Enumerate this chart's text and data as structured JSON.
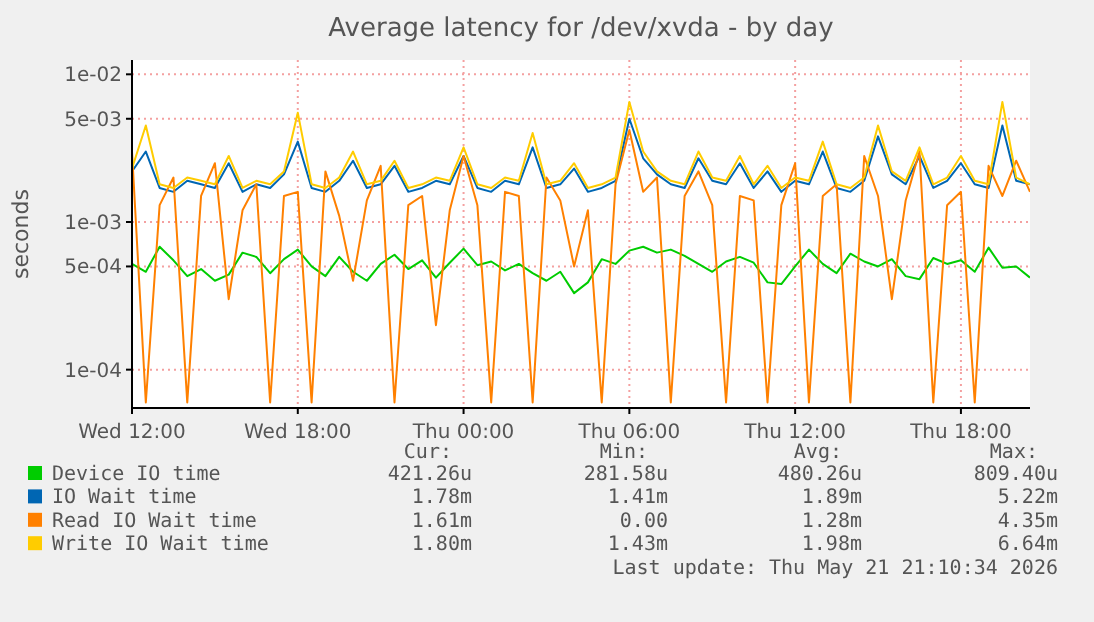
{
  "chart_data": {
    "type": "line",
    "title": "Average latency for /dev/xvda - by day",
    "ylabel": "seconds",
    "log": "y",
    "grid": true,
    "legend": "bottom",
    "marker": "none",
    "line_style": "solid",
    "x": [
      "2026-05-20T12:00",
      "2026-05-20T12:30",
      "2026-05-20T13:00",
      "2026-05-20T13:30",
      "2026-05-20T14:00",
      "2026-05-20T14:30",
      "2026-05-20T15:00",
      "2026-05-20T15:30",
      "2026-05-20T16:00",
      "2026-05-20T16:30",
      "2026-05-20T17:00",
      "2026-05-20T17:30",
      "2026-05-20T18:00",
      "2026-05-20T18:30",
      "2026-05-20T19:00",
      "2026-05-20T19:30",
      "2026-05-20T20:00",
      "2026-05-20T20:30",
      "2026-05-20T21:00",
      "2026-05-20T21:30",
      "2026-05-20T22:00",
      "2026-05-20T22:30",
      "2026-05-20T23:00",
      "2026-05-20T23:30",
      "2026-05-21T00:00",
      "2026-05-21T00:30",
      "2026-05-21T01:00",
      "2026-05-21T01:30",
      "2026-05-21T02:00",
      "2026-05-21T02:30",
      "2026-05-21T03:00",
      "2026-05-21T03:30",
      "2026-05-21T04:00",
      "2026-05-21T04:30",
      "2026-05-21T05:00",
      "2026-05-21T05:30",
      "2026-05-21T06:00",
      "2026-05-21T06:30",
      "2026-05-21T07:00",
      "2026-05-21T07:30",
      "2026-05-21T08:00",
      "2026-05-21T08:30",
      "2026-05-21T09:00",
      "2026-05-21T09:30",
      "2026-05-21T10:00",
      "2026-05-21T10:30",
      "2026-05-21T11:00",
      "2026-05-21T11:30",
      "2026-05-21T12:00",
      "2026-05-21T12:30",
      "2026-05-21T13:00",
      "2026-05-21T13:30",
      "2026-05-21T14:00",
      "2026-05-21T14:30",
      "2026-05-21T15:00",
      "2026-05-21T15:30",
      "2026-05-21T16:00",
      "2026-05-21T16:30",
      "2026-05-21T17:00",
      "2026-05-21T17:30",
      "2026-05-21T18:00",
      "2026-05-21T18:30",
      "2026-05-21T19:00",
      "2026-05-21T19:30",
      "2026-05-21T20:00",
      "2026-05-21T20:30"
    ],
    "xlim": [
      "2026-05-20T12:00",
      "2026-05-21T20:30"
    ],
    "xticks": [
      {
        "value": "2026-05-20T12:00",
        "label": "Wed 12:00"
      },
      {
        "value": "2026-05-20T18:00",
        "label": "Wed 18:00"
      },
      {
        "value": "2026-05-21T00:00",
        "label": "Thu 00:00"
      },
      {
        "value": "2026-05-21T06:00",
        "label": "Thu 06:00"
      },
      {
        "value": "2026-05-21T12:00",
        "label": "Thu 12:00"
      },
      {
        "value": "2026-05-21T18:00",
        "label": "Thu 18:00"
      }
    ],
    "ylim": [
      5.5e-05,
      0.0125
    ],
    "yticks": [
      {
        "value": 0.0001,
        "label": "1e-04"
      },
      {
        "value": 0.0005,
        "label": "5e-04"
      },
      {
        "value": 0.001,
        "label": "1e-03"
      },
      {
        "value": 0.005,
        "label": "5e-03"
      },
      {
        "value": 0.01,
        "label": "1e-02"
      }
    ],
    "series": [
      {
        "name": "Device IO time",
        "color": "#00cc00",
        "values": [
          0.00052,
          0.00046,
          0.00068,
          0.00055,
          0.00043,
          0.00048,
          0.0004,
          0.00044,
          0.00062,
          0.00058,
          0.00045,
          0.00056,
          0.00065,
          0.0005,
          0.00043,
          0.00058,
          0.00046,
          0.0004,
          0.00052,
          0.0006,
          0.00048,
          0.00055,
          0.00042,
          0.00053,
          0.00066,
          0.00051,
          0.00054,
          0.00047,
          0.00052,
          0.00045,
          0.0004,
          0.00046,
          0.00033,
          0.00039,
          0.00056,
          0.00052,
          0.00064,
          0.00068,
          0.00062,
          0.00065,
          0.00059,
          0.00052,
          0.00046,
          0.00054,
          0.00058,
          0.00053,
          0.00039,
          0.00038,
          0.0005,
          0.00065,
          0.00052,
          0.00045,
          0.00061,
          0.00054,
          0.0005,
          0.00056,
          0.00043,
          0.00041,
          0.00057,
          0.00052,
          0.00055,
          0.00046,
          0.00067,
          0.00049,
          0.0005,
          0.00042
        ]
      },
      {
        "name": "IO Wait time",
        "color": "#0066b3",
        "values": [
          0.0022,
          0.003,
          0.0017,
          0.0016,
          0.0019,
          0.0018,
          0.0017,
          0.0025,
          0.0016,
          0.0018,
          0.0017,
          0.0021,
          0.0035,
          0.0017,
          0.0016,
          0.0019,
          0.0026,
          0.0017,
          0.0018,
          0.0024,
          0.0016,
          0.0017,
          0.0019,
          0.0018,
          0.0028,
          0.0017,
          0.0016,
          0.0019,
          0.0018,
          0.0032,
          0.0017,
          0.0018,
          0.0023,
          0.0016,
          0.0017,
          0.0019,
          0.005,
          0.0027,
          0.0021,
          0.0018,
          0.0017,
          0.0027,
          0.0019,
          0.0018,
          0.0025,
          0.0017,
          0.0022,
          0.0016,
          0.0019,
          0.0018,
          0.003,
          0.0017,
          0.0016,
          0.0019,
          0.0038,
          0.0021,
          0.0018,
          0.0028,
          0.0017,
          0.0019,
          0.0025,
          0.0018,
          0.0017,
          0.0045,
          0.0019,
          0.0018
        ]
      },
      {
        "name": "Read IO Wait time",
        "color": "#ff8000",
        "values": [
          0.003,
          6e-05,
          0.0013,
          0.002,
          6e-05,
          0.0015,
          0.0025,
          0.0003,
          0.0012,
          0.0018,
          6e-05,
          0.0015,
          0.0016,
          6e-05,
          0.0022,
          0.0011,
          0.0004,
          0.0014,
          0.0024,
          6e-05,
          0.0013,
          0.0015,
          0.0002,
          0.0012,
          0.0028,
          0.0013,
          6e-05,
          0.0016,
          0.0015,
          6e-05,
          0.002,
          0.0014,
          0.0005,
          0.0012,
          6e-05,
          0.0018,
          0.0042,
          0.0016,
          0.002,
          6e-05,
          0.0015,
          0.0022,
          0.0013,
          6e-05,
          0.0015,
          0.0014,
          6e-05,
          0.0013,
          0.0025,
          6e-05,
          0.0015,
          0.0018,
          6e-05,
          0.0028,
          0.0015,
          0.0003,
          0.0014,
          0.003,
          6e-05,
          0.0013,
          0.0016,
          6e-05,
          0.0024,
          0.0015,
          0.0026,
          0.0016
        ]
      },
      {
        "name": "Write IO Wait time",
        "color": "#ffcc00",
        "values": [
          0.0023,
          0.0045,
          0.0018,
          0.0017,
          0.002,
          0.0019,
          0.0018,
          0.0028,
          0.0017,
          0.0019,
          0.0018,
          0.0022,
          0.0055,
          0.0018,
          0.0017,
          0.002,
          0.003,
          0.0018,
          0.0019,
          0.0026,
          0.0017,
          0.0018,
          0.002,
          0.0019,
          0.0032,
          0.0018,
          0.0017,
          0.002,
          0.0019,
          0.004,
          0.0018,
          0.0019,
          0.0025,
          0.0017,
          0.0018,
          0.002,
          0.0065,
          0.003,
          0.0022,
          0.0019,
          0.0018,
          0.003,
          0.002,
          0.0019,
          0.0028,
          0.0018,
          0.0024,
          0.0017,
          0.002,
          0.0019,
          0.0035,
          0.0018,
          0.0017,
          0.002,
          0.0045,
          0.0022,
          0.0019,
          0.0032,
          0.0018,
          0.002,
          0.0028,
          0.0019,
          0.0018,
          0.0065,
          0.002,
          0.0018
        ]
      }
    ],
    "annotations": [
      "Cur:",
      "Min:",
      "Avg:",
      "Max:",
      "421.26u",
      "281.58u",
      "480.26u",
      "809.40u",
      "1.78m",
      "1.41m",
      "1.89m",
      "5.22m",
      "1.61m",
      "0.00",
      "1.28m",
      "4.35m",
      "1.80m",
      "1.43m",
      "1.98m",
      "6.64m",
      "Last update: Thu May 21 21:10:34 2026"
    ]
  }
}
